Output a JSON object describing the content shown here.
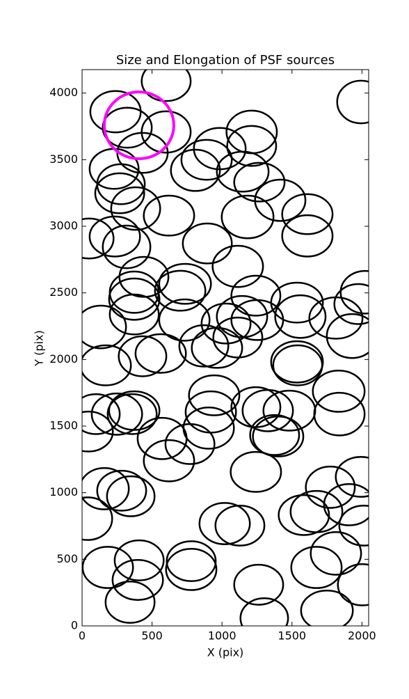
{
  "chart_data": {
    "type": "ellipse",
    "title": "Size and Elongation of PSF sources",
    "x_label": "X (pix)",
    "y_label": "Y (pix)",
    "xlim": [
      0,
      2048
    ],
    "ylim": [
      0,
      4176
    ],
    "xticks": [
      0,
      500,
      1000,
      1500,
      2000
    ],
    "yticks": [
      0,
      500,
      1000,
      1500,
      2000,
      2500,
      3000,
      3500,
      4000
    ],
    "color": "#000000",
    "x": [
      601,
      1993,
      239,
      323,
      601,
      432,
      984,
      1212,
      1212,
      890,
      810,
      1148,
      1267,
      229,
      278,
      269,
      1416,
      1610,
      383,
      621,
      1183,
      1610,
      50,
      234,
      318,
      895,
      1113,
      442,
      736,
      373,
      701,
      1242,
      373,
      1536,
      2023,
      1973,
      134,
      373,
      731,
      1029,
      1143,
      1252,
      1560,
      1814,
      1929,
      1113,
      870,
      964,
      432,
      562,
      169,
      1536,
      1541,
      944,
      1834,
      1839,
      99,
      45,
      249,
      373,
      358,
      920,
      1242,
      1327,
      1481,
      905,
      1376,
      1401,
      572,
      771,
      621,
      1242,
      159,
      283,
      348,
      1774,
      1993,
      1909,
      40,
      1019,
      1128,
      1585,
      1675,
      2013,
      184,
      408,
      398,
      343,
      780,
      780,
      1262,
      1302,
      1675,
      1814,
      2003,
      1750
    ],
    "y": [
      4090,
      3933,
      3860,
      3740,
      3708,
      3551,
      3583,
      3708,
      3603,
      3499,
      3420,
      3410,
      3331,
      3431,
      3316,
      3248,
      3195,
      3091,
      3133,
      3080,
      3070,
      2928,
      2908,
      2923,
      2845,
      2871,
      2699,
      2620,
      2568,
      2505,
      2516,
      2479,
      2453,
      2427,
      2505,
      2416,
      2244,
      2338,
      2296,
      2270,
      2322,
      2296,
      2322,
      2311,
      2176,
      2165,
      2102,
      2087,
      2024,
      2045,
      1956,
      1982,
      1956,
      1731,
      1762,
      1590,
      1590,
      1459,
      1590,
      1616,
      1590,
      1606,
      1642,
      1616,
      1616,
      1485,
      1433,
      1422,
      1407,
      1365,
      1240,
      1156,
      1030,
      1015,
      973,
      1041,
      1119,
      910,
      805,
      768,
      753,
      832,
      858,
      753,
      439,
      492,
      345,
      178,
      486,
      424,
      309,
      58,
      439,
      544,
      309,
      115
    ],
    "width": [
      350,
      340,
      360,
      350,
      350,
      360,
      370,
      360,
      350,
      360,
      350,
      370,
      360,
      350,
      340,
      350,
      360,
      360,
      350,
      360,
      370,
      360,
      350,
      360,
      340,
      350,
      360,
      350,
      370,
      350,
      360,
      350,
      360,
      370,
      350,
      340,
      360,
      350,
      360,
      350,
      360,
      370,
      360,
      380,
      360,
      350,
      350,
      360,
      340,
      360,
      360,
      370,
      350,
      360,
      370,
      360,
      340,
      350,
      360,
      360,
      350,
      360,
      350,
      360,
      370,
      360,
      350,
      360,
      350,
      350,
      360,
      360,
      350,
      350,
      340,
      350,
      360,
      360,
      350,
      360,
      350,
      360,
      370,
      350,
      360,
      350,
      360,
      350,
      350,
      360,
      350,
      340,
      360,
      360,
      350,
      370
    ],
    "height": [
      300,
      320,
      310,
      300,
      310,
      300,
      310,
      320,
      300,
      300,
      310,
      300,
      290,
      300,
      300,
      300,
      310,
      300,
      320,
      300,
      320,
      310,
      300,
      300,
      320,
      300,
      310,
      300,
      300,
      310,
      300,
      300,
      310,
      300,
      320,
      300,
      320,
      300,
      310,
      300,
      310,
      300,
      320,
      310,
      330,
      300,
      310,
      300,
      300,
      290,
      300,
      310,
      300,
      300,
      310,
      320,
      300,
      300,
      310,
      290,
      300,
      310,
      300,
      310,
      300,
      310,
      300,
      300,
      310,
      300,
      310,
      300,
      310,
      300,
      300,
      310,
      300,
      310,
      320,
      310,
      300,
      300,
      310,
      300,
      310,
      300,
      300,
      310,
      300,
      310,
      300,
      300,
      310,
      320,
      310,
      300
    ],
    "highlight": {
      "x": 407,
      "y": 3758,
      "width": 497,
      "height": 502,
      "color": "#ff00ff"
    }
  }
}
